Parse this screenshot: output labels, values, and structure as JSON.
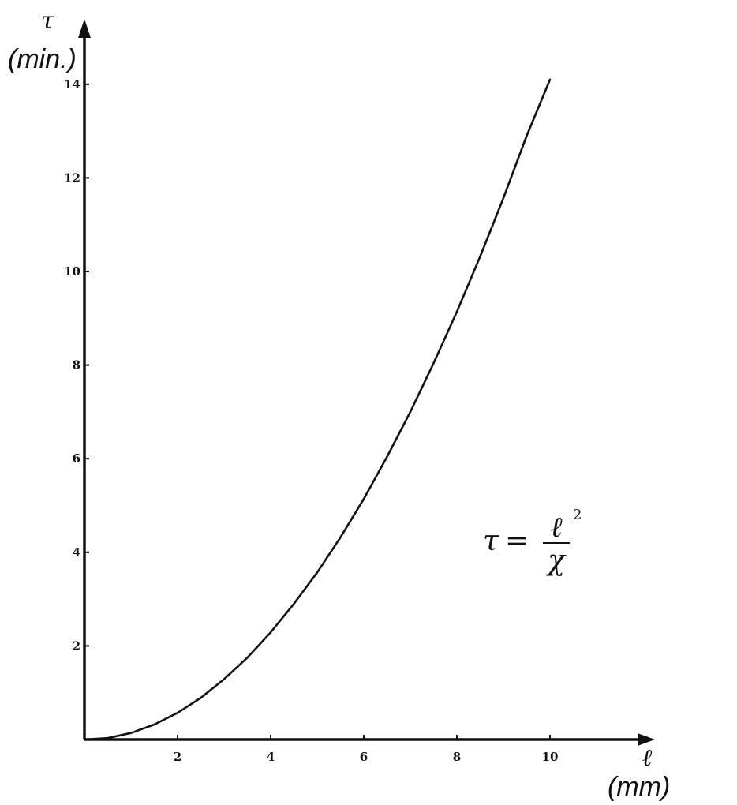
{
  "chart_data": {
    "type": "line",
    "title": "",
    "xlabel": "ℓ",
    "xunit": "(mm)",
    "ylabel": "τ",
    "yunit": "(min.)",
    "xlim": [
      0,
      12
    ],
    "ylim": [
      0,
      14.9
    ],
    "x_ticks": [
      2,
      4,
      6,
      8,
      10
    ],
    "y_ticks": [
      2,
      4,
      6,
      8,
      10,
      12,
      14
    ],
    "grid": false,
    "series": [
      {
        "values": [
          {
            "x": 0,
            "y": 0
          },
          {
            "x": 0.5,
            "y": 0.03
          },
          {
            "x": 1,
            "y": 0.14
          },
          {
            "x": 1.5,
            "y": 0.32
          },
          {
            "x": 2,
            "y": 0.57
          },
          {
            "x": 2.5,
            "y": 0.89
          },
          {
            "x": 3,
            "y": 1.29
          },
          {
            "x": 3.5,
            "y": 1.75
          },
          {
            "x": 4,
            "y": 2.29
          },
          {
            "x": 4.5,
            "y": 2.9
          },
          {
            "x": 5,
            "y": 3.57
          },
          {
            "x": 5.5,
            "y": 4.32
          },
          {
            "x": 6,
            "y": 5.14
          },
          {
            "x": 6.5,
            "y": 6.04
          },
          {
            "x": 7,
            "y": 7.0
          },
          {
            "x": 7.5,
            "y": 8.04
          },
          {
            "x": 8,
            "y": 9.14
          },
          {
            "x": 8.5,
            "y": 10.32
          },
          {
            "x": 9,
            "y": 11.57
          },
          {
            "x": 9.5,
            "y": 12.9
          },
          {
            "x": 10,
            "y": 14.1
          }
        ]
      }
    ],
    "annotation": {
      "lhs": "τ",
      "equals": "=",
      "numerator": "ℓ",
      "exponent": "2",
      "denominator": "χ"
    }
  }
}
